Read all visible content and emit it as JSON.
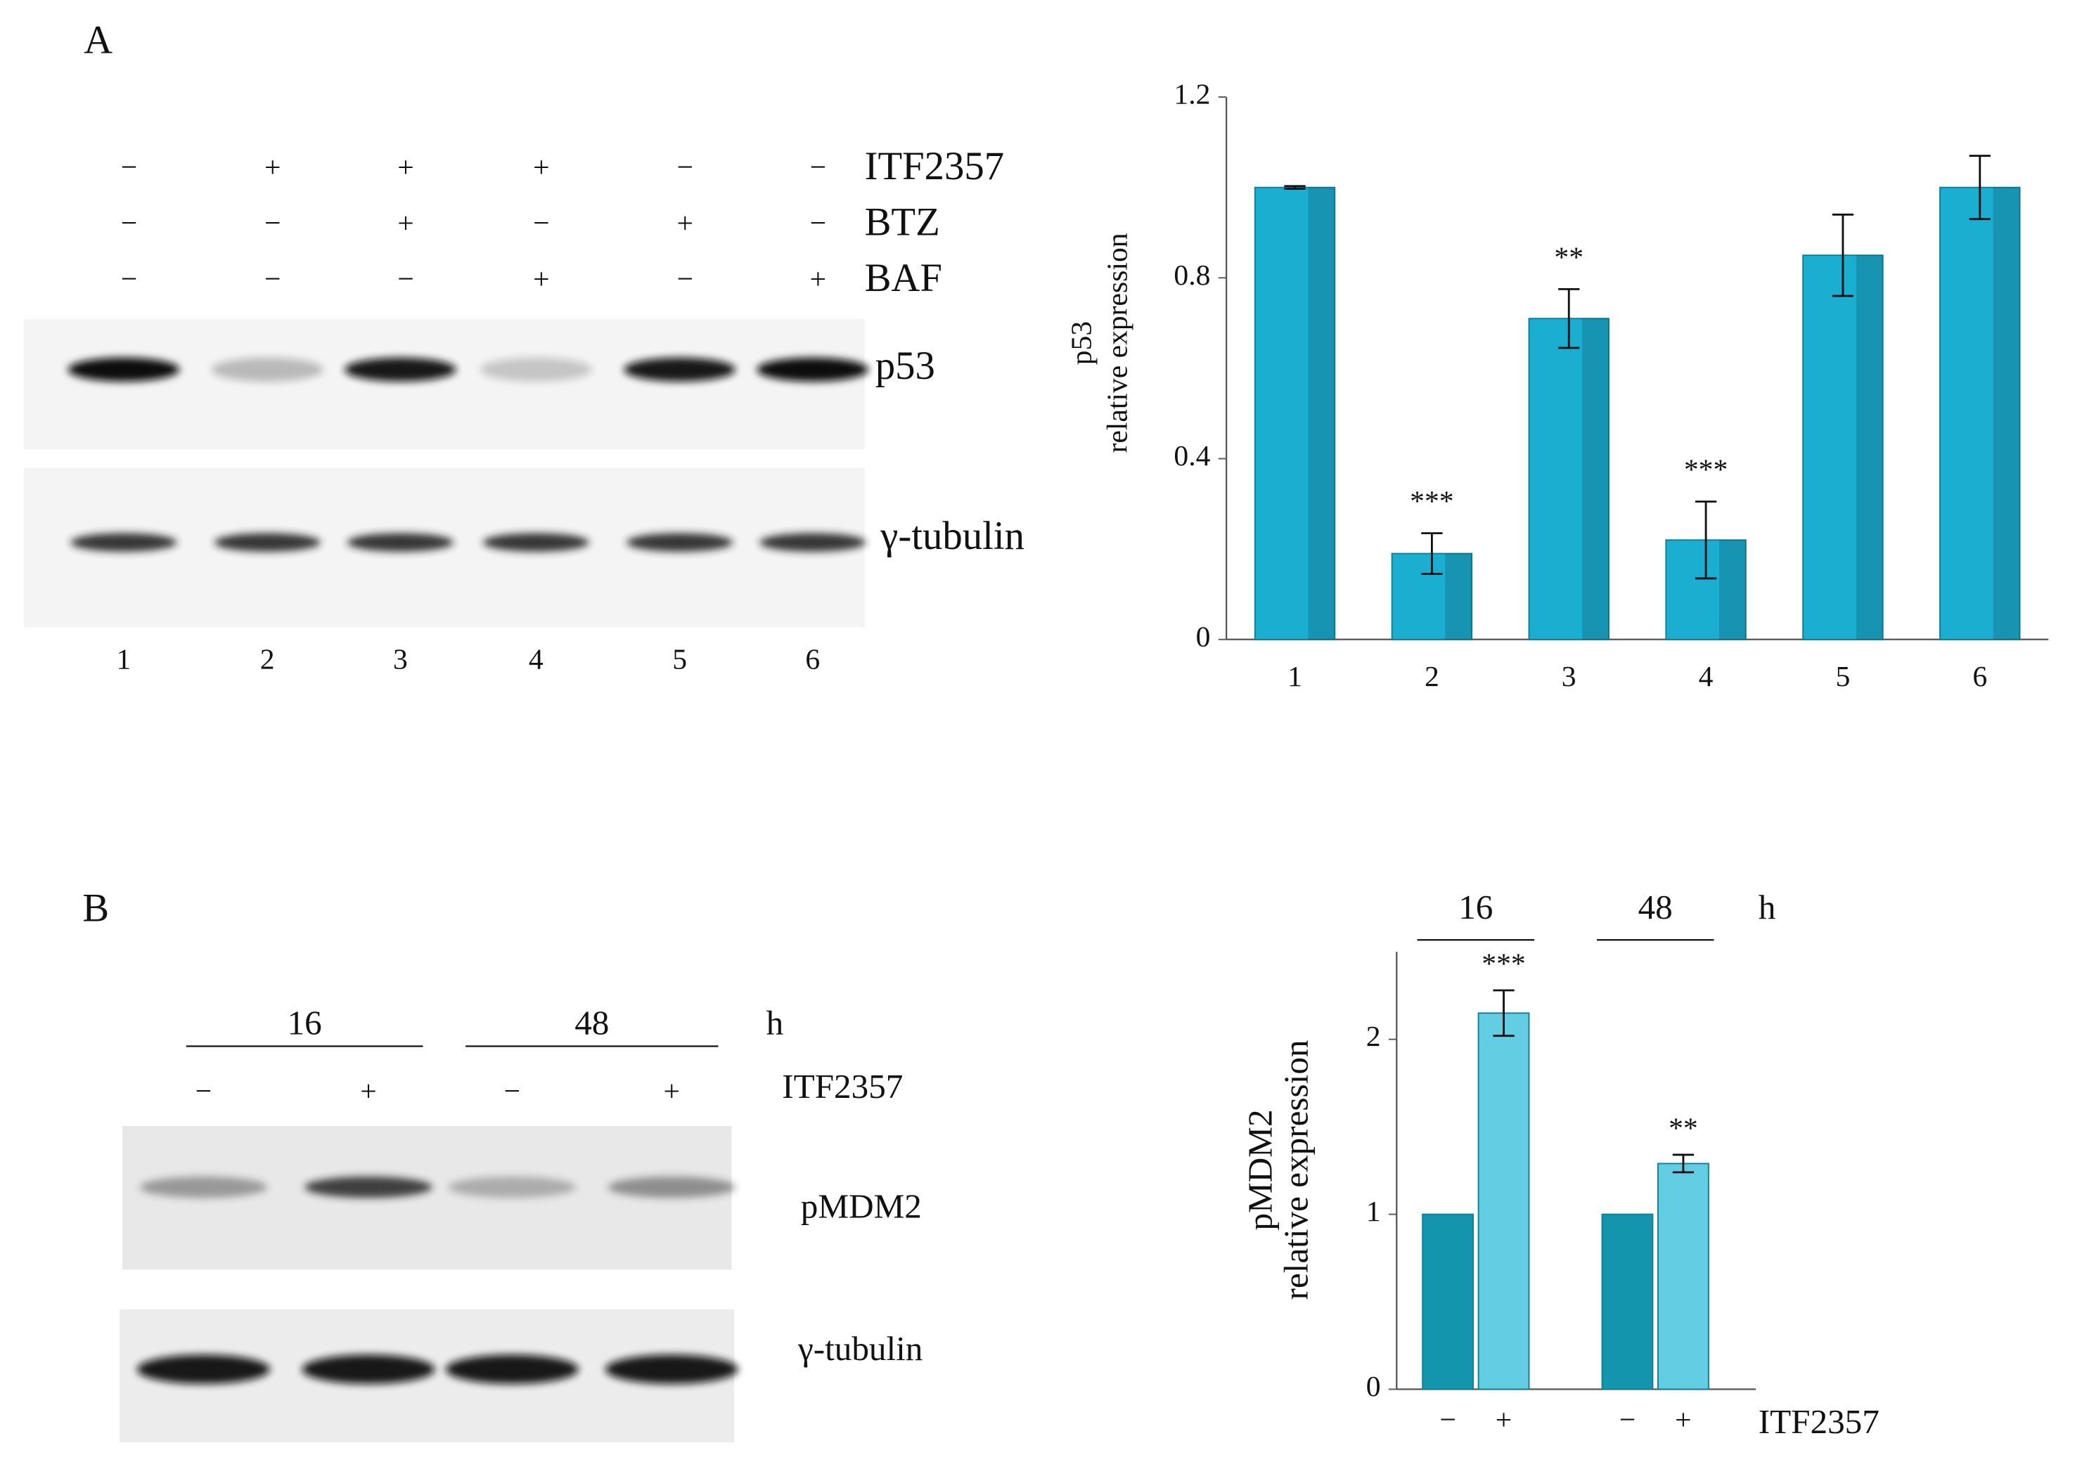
{
  "panels": {
    "A": {
      "label": "A",
      "treatments": [
        {
          "name": "ITF2357",
          "signs": [
            "−",
            "+",
            "+",
            "+",
            "−",
            "−"
          ]
        },
        {
          "name": "BTZ",
          "signs": [
            "−",
            "−",
            "+",
            "−",
            "+",
            "−"
          ]
        },
        {
          "name": "BAF",
          "signs": [
            "−",
            "−",
            "−",
            "+",
            "−",
            "+"
          ]
        }
      ],
      "bands": [
        "p53",
        "γ-tubulin"
      ],
      "lanes": [
        "1",
        "2",
        "3",
        "4",
        "5",
        "6"
      ]
    },
    "B": {
      "label": "B",
      "time_groups": [
        "16",
        "48"
      ],
      "time_unit": "h",
      "treatment": {
        "name": "ITF2357",
        "signs": [
          "−",
          "+",
          "−",
          "+"
        ]
      },
      "bands": [
        "pMDM2",
        "γ-tubulin"
      ]
    }
  },
  "chart_data": [
    {
      "type": "bar",
      "ylabel": [
        "p53",
        "relative expression"
      ],
      "categories": [
        "1",
        "2",
        "3",
        "4",
        "5",
        "6"
      ],
      "values": [
        1.0,
        0.19,
        0.71,
        0.22,
        0.85,
        1.0
      ],
      "errors": [
        0.003,
        0.045,
        0.065,
        0.085,
        0.09,
        0.07
      ],
      "significance": [
        null,
        "***",
        "**",
        "***",
        null,
        null
      ],
      "color": "#1aaed0",
      "ylim": [
        0,
        1.2
      ],
      "yticks": [
        0,
        0.4,
        0.8,
        1.2
      ]
    },
    {
      "type": "grouped_bar",
      "ylabel": [
        "pMDM2",
        "relative expression"
      ],
      "categories": [
        "16",
        "48"
      ],
      "x_unit": "h",
      "xlabel": "ITF2357",
      "series": [
        {
          "name": "−",
          "color": "#1396ad",
          "values": [
            1,
            1
          ]
        },
        {
          "name": "+",
          "color": "#62cde3",
          "values": [
            2.15,
            1.29
          ],
          "errors": [
            0.13,
            0.05
          ],
          "significance": [
            "***",
            "**"
          ]
        }
      ],
      "ylim": [
        0,
        2.5
      ],
      "yticks": [
        0,
        1,
        2
      ]
    }
  ]
}
